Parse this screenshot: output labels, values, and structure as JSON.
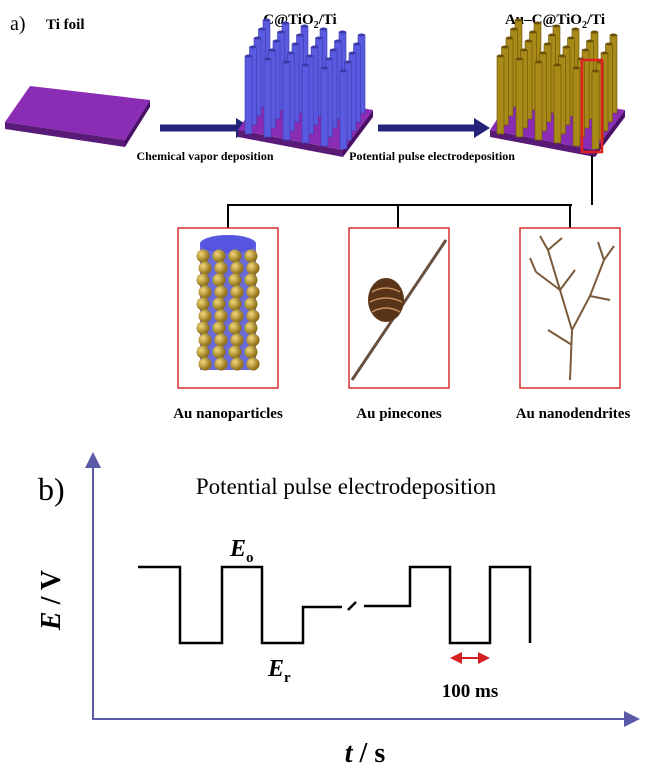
{
  "panel_a": {
    "label": "a)",
    "stage_1": "Ti foil",
    "stage_2": {
      "main": "C@TiO",
      "sub": "2",
      "tail": "/Ti"
    },
    "stage_3": {
      "main": "Au–C@TiO",
      "sub": "2",
      "tail": "/Ti"
    },
    "step_1": "Chemical vapor deposition",
    "step_2": "Potential pulse electrodeposition",
    "morphologies": [
      "Au nanoparticles",
      "Au pinecones",
      "Au nanodendrites"
    ]
  },
  "panel_b": {
    "label": "b)",
    "title": "Potential pulse electrodeposition",
    "y_axis": {
      "symbol": "E",
      "unit": " / V"
    },
    "x_axis": {
      "symbol": "t",
      "unit": " / s"
    },
    "oxidation": {
      "symbol": "E",
      "sub": "o"
    },
    "reduction": {
      "symbol": "E",
      "sub": "r"
    },
    "pulse_width": "100 ms"
  }
}
